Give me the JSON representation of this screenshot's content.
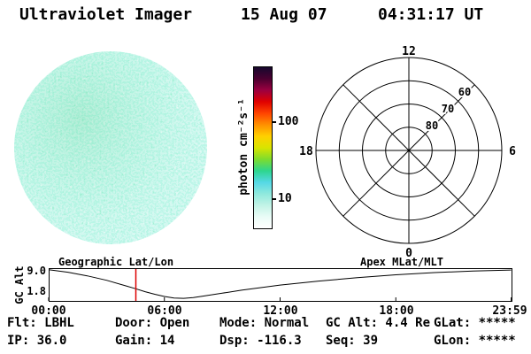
{
  "header": {
    "title": "Ultraviolet Imager",
    "date": "15 Aug 07",
    "time": "04:31:17 UT"
  },
  "status": {
    "flt": "Flt: LBHL",
    "ip": "IP: 36.0",
    "door": "Door: Open",
    "gain": "Gain: 14",
    "mode": "Mode: Normal",
    "dsp": "Dsp: -116.3",
    "gc_alt": "GC Alt: 4.4 Re",
    "seq": "Seq: 39",
    "glat": "GLat: *****",
    "glon": "GLon: *****"
  },
  "chart_data": [
    {
      "type": "heatmap",
      "name": "uv-disk-image",
      "description": "Circular full-disk ultraviolet image, speckled low-intensity counts (white / pale cyan / aquamarine / green)",
      "palette": [
        "#ffffff",
        "#d8f6ee",
        "#a9efdc",
        "#7de9c8",
        "#59dc9e",
        "#38cf6d"
      ],
      "colorbar": {
        "label": "photon cm⁻²s⁻¹",
        "scale": "log",
        "ticks": [
          10,
          100
        ],
        "tick_labels": [
          "10",
          "100"
        ],
        "colors_bottom_to_top": [
          "#ffffff",
          "#eafcf7",
          "#c2f3e6",
          "#8fe9dd",
          "#55d8e6",
          "#2ed68e",
          "#7ddc2e",
          "#d8e400",
          "#ffd000",
          "#ff9000",
          "#ff4400",
          "#e00000",
          "#9c0040",
          "#4a0030",
          "#16082e"
        ]
      }
    },
    {
      "type": "line",
      "name": "gc-alt-orbit-track",
      "ylabel": "GC Alt",
      "yticks": [
        9.0,
        1.8
      ],
      "ytick_labels": [
        "9.0",
        "1.8"
      ],
      "ylim": [
        0.8,
        9.7
      ],
      "xlim_hours": [
        0,
        24
      ],
      "xticks": [
        "00:00",
        "06:00",
        "12:00",
        "18:00",
        "23:59"
      ],
      "xtick_hours": [
        0,
        6,
        12,
        18,
        23.983
      ],
      "x_hours": [
        0,
        1,
        2,
        3,
        4,
        4.52,
        5,
        5.5,
        6,
        6.5,
        7,
        7.5,
        8,
        9,
        10,
        12,
        14,
        16,
        18,
        20,
        22,
        23.98
      ],
      "values": [
        9.3,
        8.6,
        7.6,
        6.4,
        4.9,
        4.1,
        3.3,
        2.6,
        2.0,
        1.6,
        1.5,
        1.7,
        2.1,
        2.9,
        3.7,
        5.1,
        6.2,
        7.1,
        7.9,
        8.5,
        8.9,
        9.2
      ],
      "marker_hours": 4.52,
      "marker_color": "#dd0000",
      "annotations": [
        "Geographic Lat/Lon",
        "Apex MLat/MLT"
      ]
    },
    {
      "type": "polar_grid",
      "name": "apex-mlat-mlt-grid",
      "rings_lat": [
        50,
        60,
        70,
        80
      ],
      "ring_labels": [
        "60",
        "70",
        "80"
      ],
      "mlt_labels": {
        "top": "12",
        "left": "18",
        "right": "6",
        "bottom": "0"
      },
      "outer_lat": 50,
      "spokes_deg": 45
    }
  ]
}
